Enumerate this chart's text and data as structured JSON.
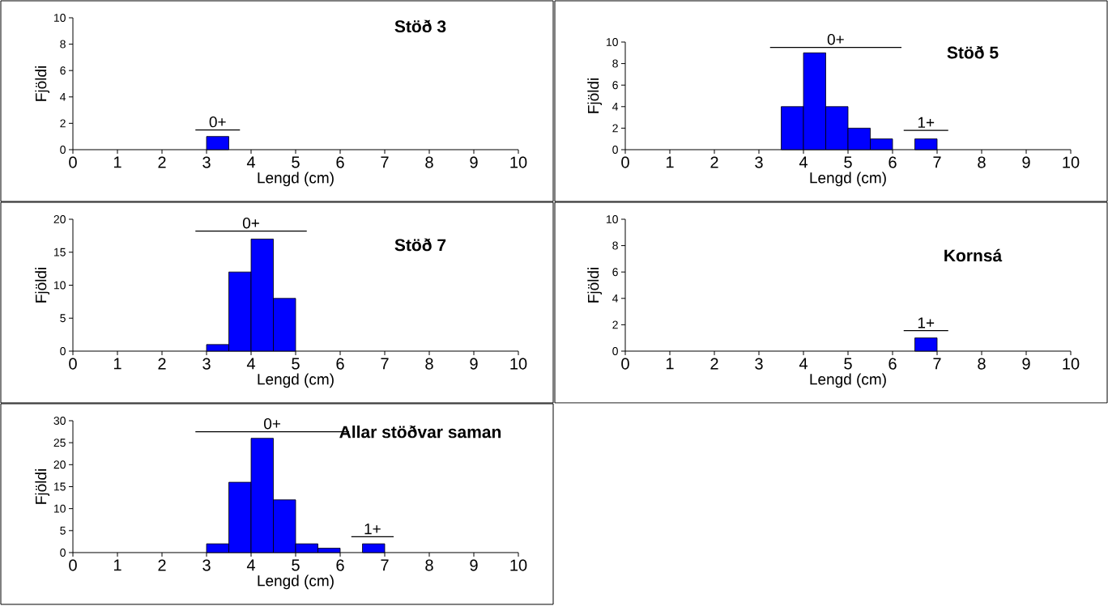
{
  "chart_data": [
    {
      "type": "histogram",
      "title": "Stöð 3",
      "xlabel": "Lengd (cm)",
      "ylabel": "Fjöldi",
      "bins": [
        3,
        3.5,
        4,
        4.5,
        5,
        5.5,
        6,
        6.5,
        7
      ],
      "values": [
        1,
        0,
        0,
        0,
        0,
        0,
        0,
        0
      ],
      "color": "#0000ff",
      "xlim": [
        0,
        10
      ],
      "xticks": [
        0,
        1,
        2,
        3,
        4,
        5,
        6,
        7,
        8,
        9,
        10
      ],
      "ylim": [
        0,
        10
      ],
      "yticks": [
        0,
        2,
        4,
        6,
        8,
        10
      ],
      "series": [
        {
          "type": "line",
          "name": "0+",
          "color": "#000000",
          "x": [
            2.75,
            3.75
          ],
          "values": [
            1.5,
            1.5
          ]
        }
      ]
    },
    {
      "type": "histogram",
      "title": "Stöð 5",
      "xlabel": "Lengd (cm)",
      "ylabel": "Fjöldi",
      "bins": [
        3,
        3.5,
        4,
        4.5,
        5,
        5.5,
        6,
        6.5,
        7
      ],
      "values": [
        0,
        4,
        9,
        4,
        2,
        1,
        0,
        1
      ],
      "color": "#0000ff",
      "xlim": [
        0,
        10
      ],
      "xticks": [
        0,
        1,
        2,
        3,
        4,
        5,
        6,
        7,
        8,
        9,
        10
      ],
      "ylim": [
        0,
        10
      ],
      "yticks": [
        0,
        2,
        4,
        6,
        8,
        10
      ],
      "series": [
        {
          "type": "line",
          "name": "0+",
          "color": "#000000",
          "x": [
            3.25,
            6.2
          ],
          "values": [
            9.5,
            9.5
          ]
        },
        {
          "type": "line",
          "name": "1+",
          "color": "#000000",
          "x": [
            6.25,
            7.25
          ],
          "values": [
            1.8,
            1.8
          ]
        }
      ]
    },
    {
      "type": "histogram",
      "title": "Stöð 7",
      "xlabel": "Lengd (cm)",
      "ylabel": "Fjöldi",
      "bins": [
        3,
        3.5,
        4,
        4.5,
        5,
        5.5,
        6,
        6.5,
        7
      ],
      "values": [
        1,
        12,
        17,
        8,
        0,
        0,
        0,
        0
      ],
      "color": "#0000ff",
      "xlim": [
        0,
        10
      ],
      "xticks": [
        0,
        1,
        2,
        3,
        4,
        5,
        6,
        7,
        8,
        9,
        10
      ],
      "ylim": [
        0,
        20
      ],
      "yticks": [
        0,
        5,
        10,
        15,
        20
      ],
      "series": [
        {
          "type": "line",
          "name": "0+",
          "color": "#000000",
          "x": [
            2.75,
            5.25
          ],
          "values": [
            18.2,
            18.2
          ]
        }
      ]
    },
    {
      "type": "histogram",
      "title": "Kornsá",
      "xlabel": "Lengd (cm)",
      "ylabel": "Fjöldi",
      "bins": [
        3,
        3.5,
        4,
        4.5,
        5,
        5.5,
        6,
        6.5,
        7
      ],
      "values": [
        0,
        0,
        0,
        0,
        0,
        0,
        0,
        1
      ],
      "color": "#0000ff",
      "xlim": [
        0,
        10
      ],
      "xticks": [
        0,
        1,
        2,
        3,
        4,
        5,
        6,
        7,
        8,
        9,
        10
      ],
      "ylim": [
        0,
        10
      ],
      "yticks": [
        0,
        2,
        4,
        6,
        8,
        10
      ],
      "series": [
        {
          "type": "line",
          "name": "1+",
          "color": "#000000",
          "x": [
            6.25,
            7.25
          ],
          "values": [
            1.55,
            1.55
          ]
        }
      ]
    },
    {
      "type": "histogram",
      "title": "Allar stöðvar saman",
      "xlabel": "Lengd (cm)",
      "ylabel": "Fjöldi",
      "bins": [
        3,
        3.5,
        4,
        4.5,
        5,
        5.5,
        6,
        6.5,
        7
      ],
      "values": [
        2,
        16,
        26,
        12,
        2,
        1,
        0,
        2
      ],
      "color": "#0000ff",
      "xlim": [
        0,
        10
      ],
      "xticks": [
        0,
        1,
        2,
        3,
        4,
        5,
        6,
        7,
        8,
        9,
        10
      ],
      "ylim": [
        0,
        30
      ],
      "yticks": [
        0,
        5,
        10,
        15,
        20,
        25,
        30
      ],
      "series": [
        {
          "type": "line",
          "name": "0+",
          "color": "#000000",
          "x": [
            2.75,
            6.2
          ],
          "values": [
            27.5,
            27.5
          ]
        },
        {
          "type": "line",
          "name": "1+",
          "color": "#000000",
          "x": [
            6.25,
            7.2
          ],
          "values": [
            3.6,
            3.6
          ]
        }
      ]
    }
  ]
}
